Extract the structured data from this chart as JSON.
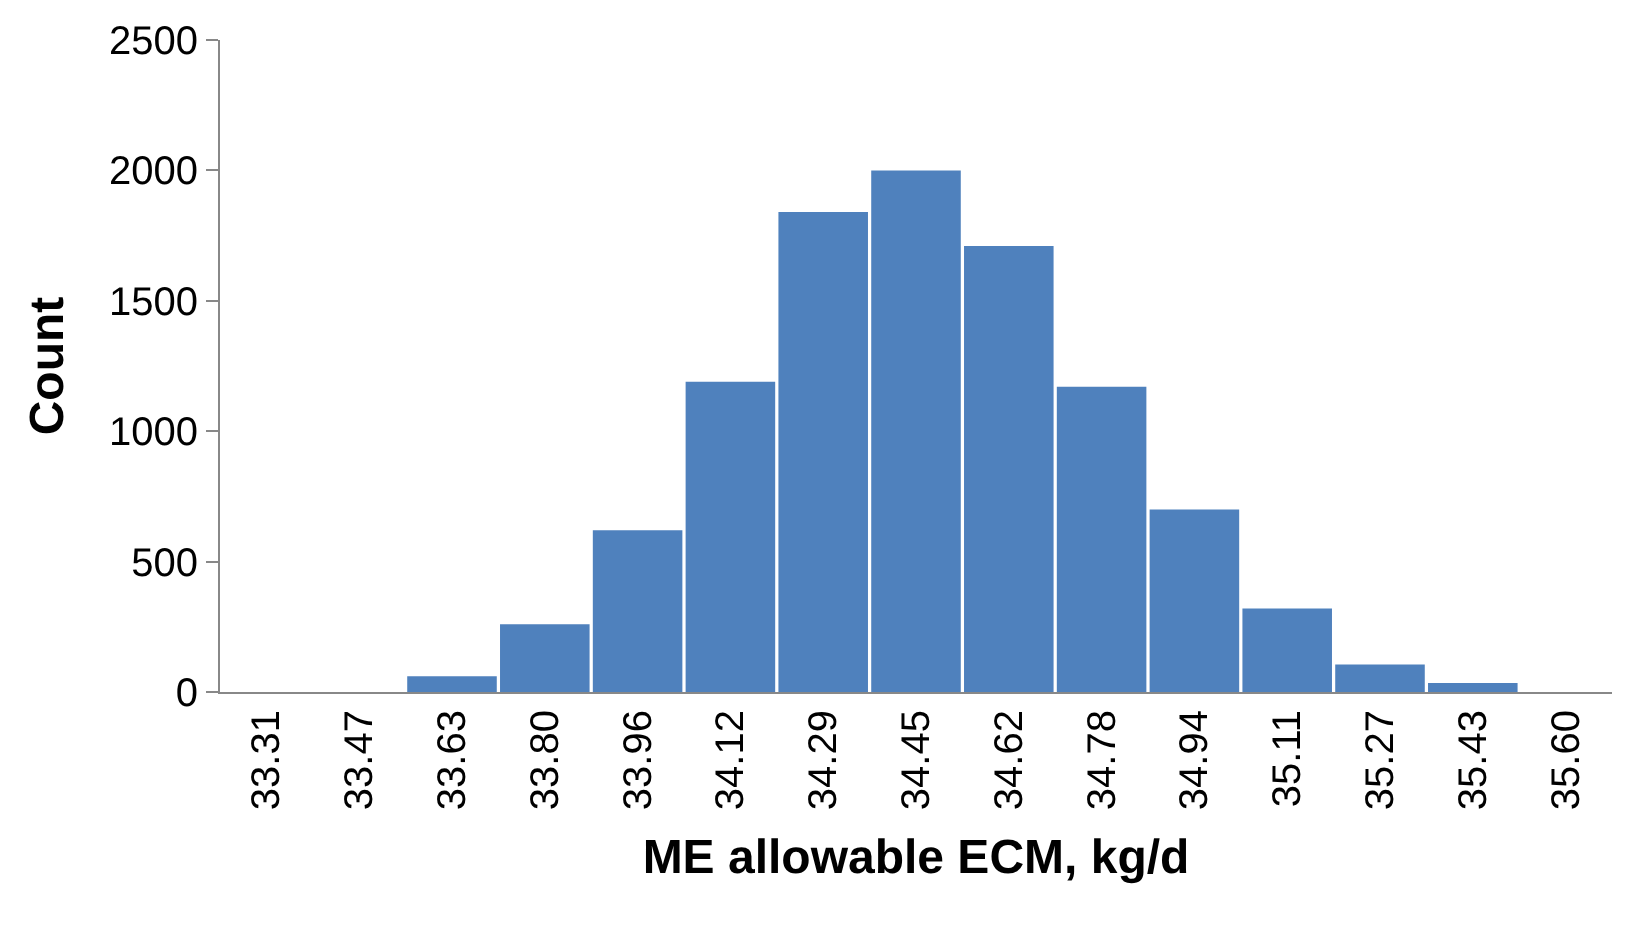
{
  "chart_data": {
    "type": "bar",
    "xlabel": "ME allowable ECM, kg/d",
    "ylabel": "Count",
    "categories": [
      "33.31",
      "33.47",
      "33.63",
      "33.80",
      "33.96",
      "34.12",
      "34.29",
      "34.45",
      "34.62",
      "34.78",
      "34.94",
      "35.11",
      "35.27",
      "35.43",
      "35.60"
    ],
    "values": [
      0,
      0,
      60,
      260,
      620,
      1190,
      1840,
      2000,
      1710,
      1170,
      700,
      320,
      105,
      35,
      0
    ],
    "color": "#4f81bd",
    "ylim": [
      0,
      2500
    ],
    "yticks": [
      0,
      500,
      1000,
      1500,
      2000,
      2500
    ],
    "legend": false
  }
}
